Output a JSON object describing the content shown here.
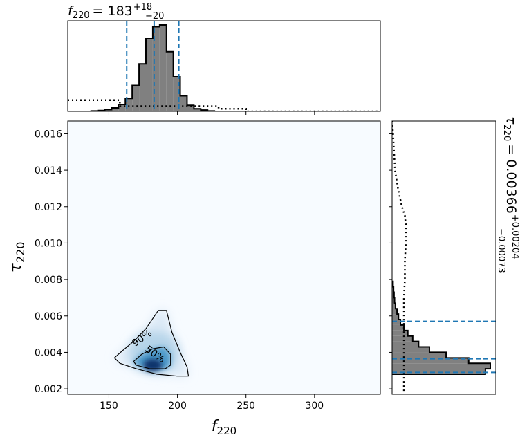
{
  "chart_data": {
    "type": "scatter",
    "plot_kind": "corner posterior (2D density + marginal histograms)",
    "main": {
      "xlabel": {
        "symbol": "f",
        "subscript": "220"
      },
      "ylabel": {
        "symbol": "τ",
        "subscript": "220"
      },
      "xlim": [
        120,
        348
      ],
      "ylim": [
        0.0017,
        0.0167
      ],
      "x_ticks": [
        150,
        200,
        250,
        300
      ],
      "x_tick_labels": [
        "150",
        "200",
        "250",
        "300"
      ],
      "y_ticks": [
        0.002,
        0.004,
        0.006,
        0.008,
        0.01,
        0.012,
        0.014,
        0.016
      ],
      "y_tick_labels": [
        "0.002",
        "0.004",
        "0.006",
        "0.008",
        "0.010",
        "0.012",
        "0.014",
        "0.016"
      ],
      "density_colormap": "Blues",
      "density_peak": {
        "f": 182,
        "tau": 0.0033
      },
      "contours": [
        {
          "label": "90%",
          "points": [
            [
              154,
              0.0037
            ],
            [
              160,
              0.0041
            ],
            [
              168,
              0.0046
            ],
            [
              177,
              0.0053
            ],
            [
              186,
              0.0063
            ],
            [
              192,
              0.0063
            ],
            [
              196,
              0.0051
            ],
            [
              202,
              0.004
            ],
            [
              207,
              0.0032
            ],
            [
              208,
              0.0027
            ],
            [
              200,
              0.0027
            ],
            [
              185,
              0.0028
            ],
            [
              170,
              0.0031
            ],
            [
              158,
              0.0034
            ],
            [
              154,
              0.0037
            ]
          ]
        },
        {
          "label": "50%",
          "points": [
            [
              168,
              0.0035
            ],
            [
              174,
              0.0039
            ],
            [
              182,
              0.0042
            ],
            [
              190,
              0.0043
            ],
            [
              195,
              0.0039
            ],
            [
              195,
              0.0033
            ],
            [
              191,
              0.0031
            ],
            [
              180,
              0.0031
            ],
            [
              170,
              0.0033
            ],
            [
              168,
              0.0035
            ]
          ]
        }
      ]
    },
    "top_marginal": {
      "title": {
        "prefix": "f",
        "subscript": "220",
        "value": "= 183",
        "upper": "+18",
        "lower": "−20"
      },
      "quantile_lines": [
        163,
        183,
        201
      ],
      "histogram": {
        "bin_edges": [
          137,
          142,
          147,
          152,
          157,
          162,
          167,
          172,
          177,
          182,
          187,
          192,
          197,
          202,
          207,
          212,
          217,
          222,
          227
        ],
        "heights": [
          0.005,
          0.01,
          0.02,
          0.04,
          0.08,
          0.15,
          0.3,
          0.55,
          0.84,
          0.98,
          1.0,
          0.69,
          0.4,
          0.18,
          0.07,
          0.03,
          0.015,
          0.005
        ]
      },
      "prior": {
        "x": [
          120,
          158,
          158,
          230,
          230,
          250,
          250,
          348
        ],
        "y": [
          0.13,
          0.13,
          0.06,
          0.06,
          0.03,
          0.03,
          0.0,
          0.0
        ]
      }
    },
    "right_marginal": {
      "title": {
        "prefix": "τ",
        "subscript": "220",
        "value": "= 0.00366",
        "upper": "+0.00204",
        "lower": "−0.00073"
      },
      "quantile_lines": [
        0.0029,
        0.00365,
        0.0057
      ],
      "histogram": {
        "bin_edges": [
          0.0028,
          0.0031,
          0.0034,
          0.0037,
          0.004,
          0.0043,
          0.0046,
          0.0049,
          0.0052,
          0.0055,
          0.0058,
          0.0061,
          0.0064,
          0.0067,
          0.007,
          0.0073,
          0.0076,
          0.0079
        ],
        "widths": [
          0.95,
          1.0,
          0.78,
          0.55,
          0.38,
          0.27,
          0.21,
          0.16,
          0.12,
          0.085,
          0.065,
          0.05,
          0.035,
          0.025,
          0.02,
          0.015,
          0.01
        ]
      },
      "prior": {
        "tau": [
          0.0167,
          0.016,
          0.015,
          0.014,
          0.013,
          0.012,
          0.0115,
          0.011,
          0.01,
          0.009,
          0.008,
          0.007,
          0.006,
          0.005,
          0.004,
          0.003,
          0.0017
        ],
        "width": [
          0.0,
          0.01,
          0.02,
          0.03,
          0.06,
          0.1,
          0.13,
          0.14,
          0.14,
          0.13,
          0.13,
          0.12,
          0.12,
          0.12,
          0.12,
          0.12,
          0.12
        ]
      }
    },
    "colors": {
      "histogram_fill": "#808080",
      "histogram_edge": "#000000",
      "quantile_line": "#1f77b4",
      "contour": "#000000",
      "density_low": "#f7fbff",
      "density_high": "#08306b"
    }
  }
}
